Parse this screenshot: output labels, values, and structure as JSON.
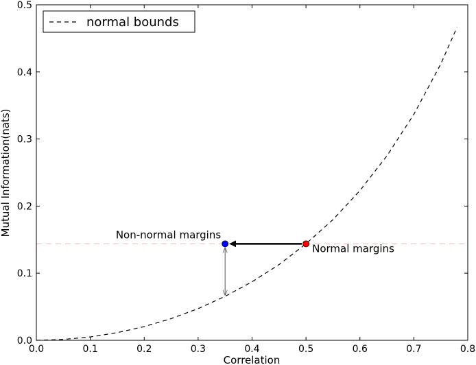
{
  "chart_data": {
    "type": "line",
    "xlabel": "Correlation",
    "ylabel": "Mutual Information(nats)",
    "xlim": [
      0.0,
      0.8
    ],
    "ylim": [
      0.0,
      0.5
    ],
    "xticks": [
      "0.0",
      "0.1",
      "0.2",
      "0.3",
      "0.4",
      "0.5",
      "0.6",
      "0.7",
      "0.8"
    ],
    "yticks": [
      "0.0",
      "0.1",
      "0.2",
      "0.3",
      "0.4",
      "0.5"
    ],
    "grid": false,
    "legend": {
      "placement": "top-left",
      "entries": [
        "normal bounds"
      ]
    },
    "series": [
      {
        "name": "normal bounds",
        "style": "dashed",
        "color": "#000000",
        "x": [
          0.0,
          0.05,
          0.1,
          0.15,
          0.2,
          0.25,
          0.3,
          0.35,
          0.4,
          0.45,
          0.5,
          0.55,
          0.6,
          0.65,
          0.7,
          0.75,
          0.78
        ],
        "y": [
          0.0,
          0.0013,
          0.005,
          0.0114,
          0.0204,
          0.0323,
          0.0472,
          0.0655,
          0.0872,
          0.1128,
          0.1438,
          0.1798,
          0.2231,
          0.2748,
          0.3367,
          0.4119,
          0.4664
        ]
      }
    ],
    "reference_line": {
      "y": 0.1438,
      "color": "#f4b8b8",
      "style": "dashed"
    },
    "points": [
      {
        "label": "Normal margins",
        "x": 0.5,
        "y": 0.1438,
        "color": "#ff0000"
      },
      {
        "label": "Non-normal margins",
        "x": 0.35,
        "y": 0.1438,
        "color": "#0000ff"
      }
    ],
    "arrows": [
      {
        "from": [
          0.5,
          0.1438
        ],
        "to": [
          0.35,
          0.1438
        ],
        "color": "#000000",
        "weight": "thick"
      },
      {
        "from": [
          0.35,
          0.1438
        ],
        "to": [
          0.35,
          0.0655
        ],
        "color": "#555555",
        "weight": "thin",
        "double_headed": true
      }
    ]
  }
}
